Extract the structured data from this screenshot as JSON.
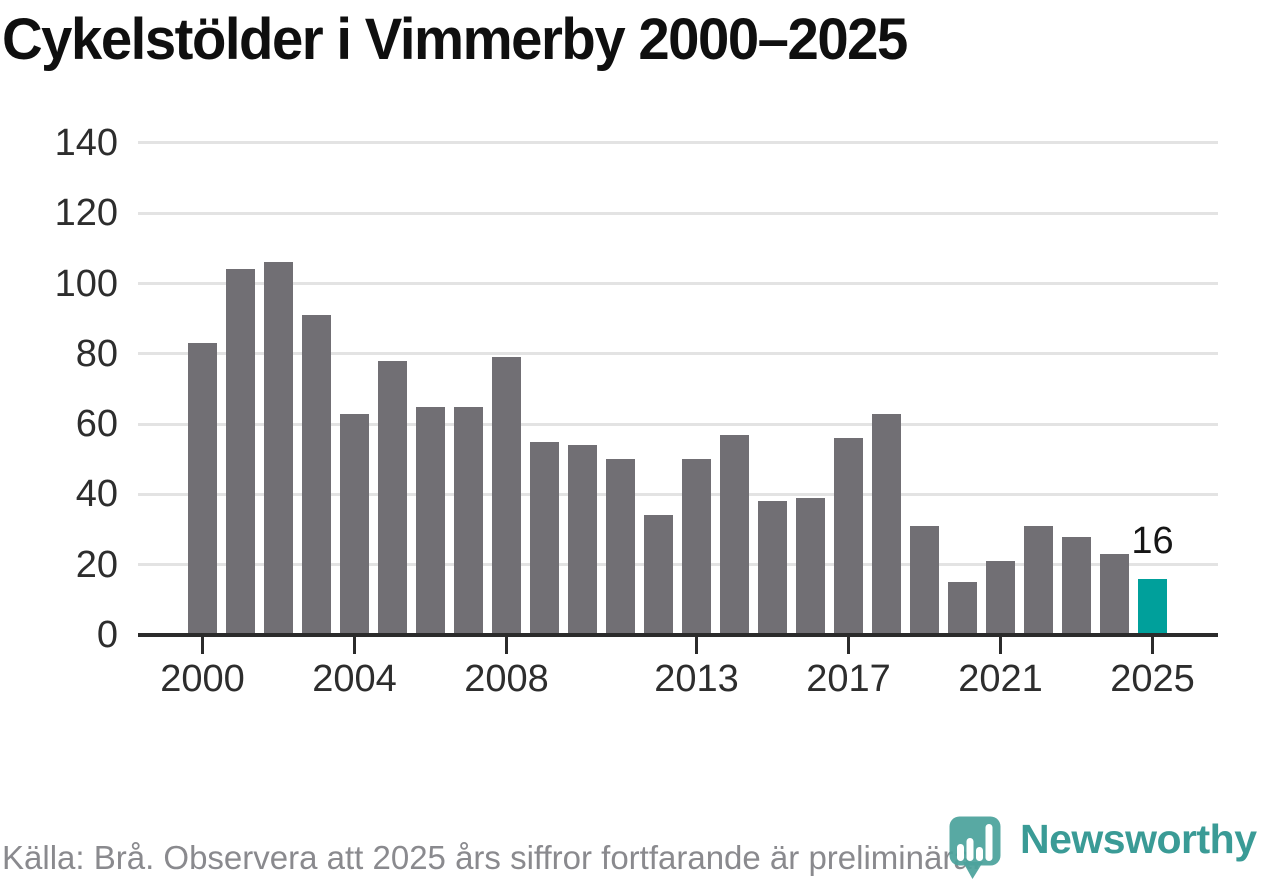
{
  "title": "Cykelstölder i Vimmerby 2000–2025",
  "chart_data": {
    "type": "bar",
    "x": [
      2000,
      2001,
      2002,
      2003,
      2004,
      2005,
      2006,
      2007,
      2008,
      2009,
      2010,
      2011,
      2012,
      2013,
      2014,
      2015,
      2016,
      2017,
      2018,
      2019,
      2020,
      2021,
      2022,
      2023,
      2024,
      2025
    ],
    "values": [
      83,
      104,
      106,
      91,
      63,
      78,
      65,
      65,
      79,
      55,
      54,
      50,
      34,
      50,
      57,
      38,
      39,
      56,
      63,
      31,
      15,
      21,
      31,
      28,
      23,
      16
    ],
    "title": "Cykelstölder i Vimmerby 2000–2025",
    "xlabel": "",
    "ylabel": "",
    "ylim": [
      0,
      140
    ],
    "yticks": [
      0,
      20,
      40,
      60,
      80,
      100,
      120,
      140
    ],
    "xticks": [
      2000,
      2004,
      2008,
      2013,
      2017,
      2021,
      2025
    ],
    "grid": "horizontal",
    "legend": "none",
    "highlight_year": 2025,
    "annotation": {
      "year": 2025,
      "text": "16"
    }
  },
  "colors": {
    "bar": "#716F74",
    "highlight": "#00A09B",
    "grid": "#e3e3e3",
    "axis": "#2b2b2b",
    "tick_text": "#2d2d2d",
    "title_text": "#0f0f0f",
    "footer_text": "#8a8a8e",
    "logo_teal": "#4BA39C",
    "logo_text_teal": "#3A9B96"
  },
  "footer": {
    "source_note": "Källa: Brå. Observera att 2025 års siffror fortfarande är preliminära."
  },
  "logo": {
    "label": "Newsworthy",
    "icon": "newsworthy-pin-barchart-icon"
  }
}
